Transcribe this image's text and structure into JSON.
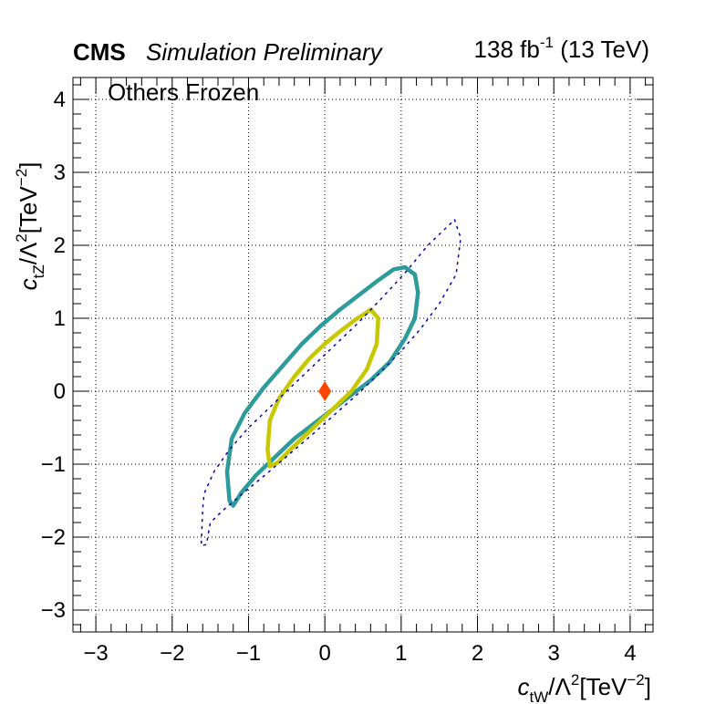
{
  "header": {
    "experiment": "CMS",
    "subtitle": "Simulation Preliminary",
    "lumi": "138",
    "lumi_unit": "fb",
    "lumi_exp": "-1",
    "energy": "(13 TeV)"
  },
  "chart_data": {
    "type": "line",
    "annotation": "Others Frozen",
    "xlabel": {
      "symbol": "c",
      "sub": "tW",
      "rest": "/Λ",
      "sup1": "2",
      "unit": "[TeV",
      "sup2": "−2",
      "close": "]"
    },
    "ylabel": {
      "symbol": "c",
      "sub": "tZ",
      "rest": "/Λ",
      "sup1": "2",
      "unit": "[TeV",
      "sup2": "−2",
      "close": "]"
    },
    "xlim": [
      -3.3,
      4.3
    ],
    "ylim": [
      -3.3,
      4.3
    ],
    "xticks": [
      -3,
      -2,
      -1,
      0,
      1,
      2,
      3,
      4
    ],
    "yticks": [
      -3,
      -2,
      -1,
      0,
      1,
      2,
      3,
      4
    ],
    "tick_labels": [
      "−3",
      "−2",
      "−1",
      "0",
      "1",
      "2",
      "3",
      "4"
    ],
    "grid": true,
    "best_fit": {
      "x": 0.0,
      "y": 0.0,
      "color": "#ff4500",
      "marker": "diamond"
    },
    "series": [
      {
        "color": "#2e9b9b",
        "style": "solid",
        "x": [
          1.05,
          1.18,
          1.22,
          1.18,
          1.05,
          0.85,
          0.6,
          0.35,
          0.1,
          -0.15,
          -0.4,
          -0.65,
          -0.9,
          -1.1,
          -1.2,
          -1.25,
          -1.28,
          -1.22,
          -1.05,
          -0.8,
          -0.55,
          -0.3,
          -0.05,
          0.2,
          0.45,
          0.7,
          0.9,
          1.05
        ],
        "y": [
          1.7,
          1.6,
          1.35,
          1.0,
          0.72,
          0.4,
          0.15,
          -0.05,
          -0.25,
          -0.45,
          -0.65,
          -0.9,
          -1.15,
          -1.4,
          -1.57,
          -1.5,
          -1.1,
          -0.65,
          -0.3,
          0.05,
          0.35,
          0.65,
          0.9,
          1.12,
          1.32,
          1.52,
          1.67,
          1.7
        ]
      },
      {
        "color": "#c8c800",
        "style": "solid",
        "x": [
          0.6,
          0.7,
          0.68,
          0.55,
          0.35,
          0.15,
          -0.05,
          -0.25,
          -0.45,
          -0.62,
          -0.72,
          -0.75,
          -0.72,
          -0.6,
          -0.4,
          -0.2,
          0.0,
          0.2,
          0.4,
          0.55,
          0.6
        ],
        "y": [
          1.12,
          1.0,
          0.65,
          0.3,
          0.0,
          -0.2,
          -0.4,
          -0.6,
          -0.8,
          -0.98,
          -1.03,
          -0.8,
          -0.4,
          -0.1,
          0.2,
          0.45,
          0.65,
          0.82,
          0.98,
          1.08,
          1.12
        ]
      },
      {
        "color": "#0000b4",
        "style": "dotted",
        "x": [
          1.7,
          1.78,
          1.72,
          1.5,
          1.25,
          1.0,
          0.72,
          0.45,
          0.15,
          -0.15,
          -0.45,
          -0.75,
          -1.05,
          -1.32,
          -1.5,
          -1.55,
          -1.62,
          -1.6,
          -1.58,
          -1.45,
          -1.25,
          -1.0,
          -0.75,
          -0.45,
          -0.15,
          0.15,
          0.45,
          0.75,
          1.05,
          1.35,
          1.7
        ],
        "y": [
          2.35,
          2.1,
          1.6,
          1.2,
          0.85,
          0.55,
          0.25,
          -0.02,
          -0.3,
          -0.58,
          -0.85,
          -1.12,
          -1.38,
          -1.62,
          -1.8,
          -2.1,
          -2.12,
          -1.6,
          -1.4,
          -1.1,
          -0.8,
          -0.5,
          -0.25,
          0.05,
          0.35,
          0.65,
          0.95,
          1.28,
          1.62,
          2.0,
          2.35
        ]
      }
    ]
  }
}
